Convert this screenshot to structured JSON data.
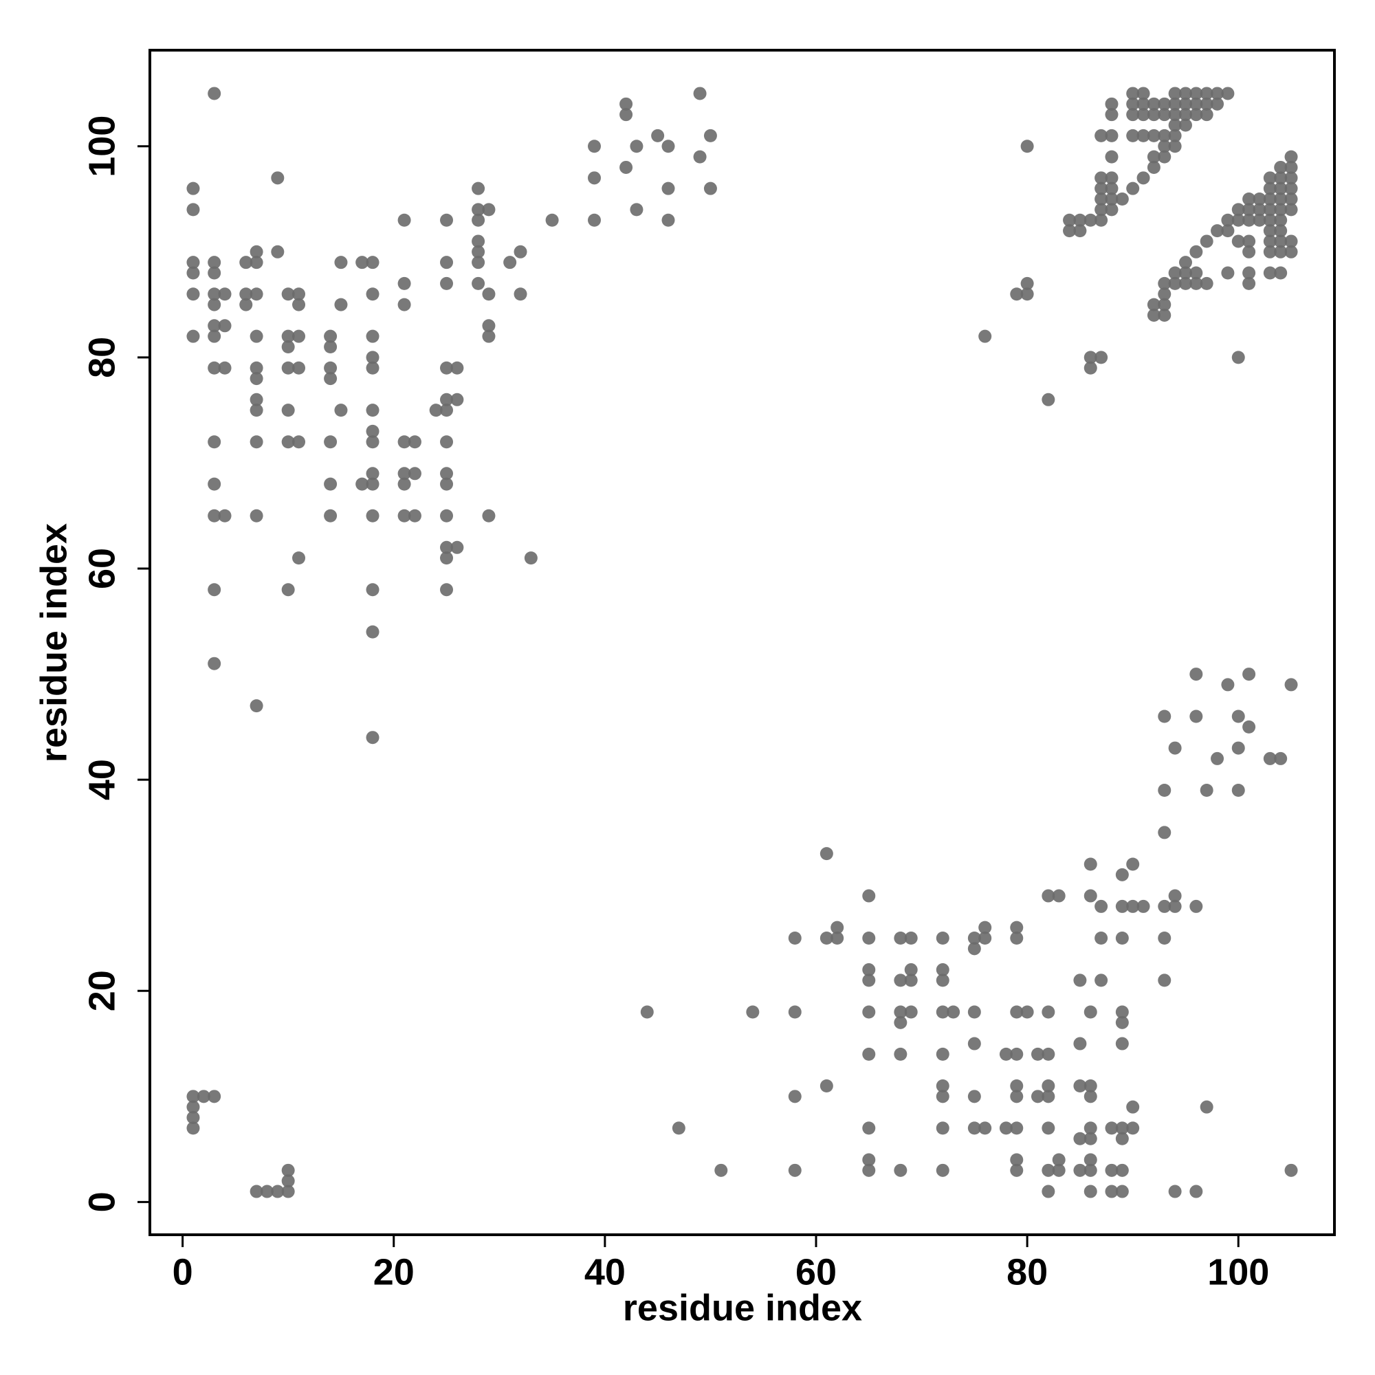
{
  "chart_data": {
    "type": "scatter",
    "x_label": "residue index",
    "y_label": "residue index",
    "xlim": [
      -3.1,
      109.1
    ],
    "ylim": [
      -3.1,
      109.1
    ],
    "xticks": [
      0,
      20,
      40,
      60,
      80,
      100
    ],
    "yticks": [
      0,
      20,
      40,
      60,
      80,
      100
    ],
    "series": [
      {
        "color": "#6a6a6a",
        "x": [
          1,
          1,
          3,
          9,
          1,
          1,
          1,
          1,
          3,
          3,
          3,
          3,
          3,
          3,
          3,
          3,
          3,
          3,
          3,
          3,
          4,
          4,
          4,
          4,
          6,
          6,
          6,
          7,
          7,
          7,
          7,
          7,
          7,
          7,
          7,
          7,
          7,
          7,
          9,
          10,
          10,
          10,
          10,
          10,
          10,
          10,
          11,
          11,
          11,
          11,
          11,
          11,
          14,
          14,
          14,
          14,
          14,
          14,
          14,
          15,
          15,
          15,
          17,
          17,
          18,
          18,
          18,
          18,
          18,
          18,
          18,
          18,
          18,
          18,
          18,
          18,
          18,
          18,
          21,
          21,
          21,
          21,
          21,
          21,
          21,
          22,
          22,
          22,
          24,
          25,
          25,
          25,
          25,
          25,
          25,
          25,
          25,
          25,
          25,
          25,
          25,
          25,
          26,
          26,
          26,
          28,
          28,
          28,
          28,
          28,
          28,
          28,
          29,
          29,
          29,
          29,
          29,
          31,
          32,
          32,
          33,
          35,
          39,
          39,
          39,
          42,
          42,
          42,
          43,
          43,
          45,
          46,
          46,
          46,
          49,
          49,
          50,
          50,
          1,
          1,
          1,
          1,
          2,
          3,
          7,
          8,
          9,
          10,
          10,
          10,
          76,
          79,
          80,
          80,
          80,
          82,
          84,
          84,
          85,
          85,
          86,
          86,
          86,
          87,
          87,
          87,
          87,
          87,
          87,
          87,
          88,
          88,
          88,
          88,
          88,
          88,
          88,
          88,
          89,
          90,
          90,
          90,
          90,
          90,
          91,
          91,
          91,
          91,
          91,
          92,
          92,
          92,
          92,
          92,
          93,
          93,
          93,
          93,
          93,
          94,
          94,
          94,
          94,
          94,
          94,
          95,
          95,
          95,
          95,
          96,
          96,
          96,
          97,
          97,
          97,
          98,
          98,
          99,
          92,
          92,
          93,
          93,
          93,
          93,
          94,
          94,
          95,
          95,
          95,
          96,
          96,
          96,
          97,
          97,
          98,
          99,
          99,
          99,
          100,
          100,
          100,
          100,
          101,
          101,
          101,
          101,
          101,
          101,
          101,
          102,
          102,
          102,
          103,
          103,
          103,
          103,
          103,
          103,
          103,
          103,
          103,
          104,
          104,
          104,
          104,
          104,
          104,
          104,
          104,
          104,
          104,
          105,
          105,
          105,
          105,
          105,
          105,
          105,
          105,
          47,
          51,
          44,
          54,
          58,
          58,
          58,
          58,
          61,
          61,
          61,
          62,
          62,
          65,
          65,
          65,
          65,
          65,
          65,
          65,
          65,
          65,
          68,
          68,
          68,
          68,
          68,
          68,
          69,
          69,
          69,
          69,
          72,
          72,
          72,
          72,
          72,
          72,
          72,
          72,
          72,
          73,
          75,
          75,
          75,
          75,
          75,
          75,
          76,
          76,
          76,
          78,
          78,
          79,
          79,
          79,
          79,
          79,
          79,
          79,
          79,
          79,
          80,
          81,
          81,
          82,
          82,
          82,
          82,
          82,
          82,
          82,
          82,
          83,
          83,
          83,
          85,
          85,
          85,
          85,
          85,
          86,
          86,
          86,
          86,
          86,
          86,
          86,
          86,
          86,
          86,
          87,
          87,
          87,
          88,
          88,
          88,
          89,
          89,
          89,
          89,
          89,
          89,
          89,
          89,
          89,
          89,
          90,
          90,
          90,
          90,
          91,
          93,
          93,
          93,
          93,
          93,
          93,
          94,
          94,
          94,
          94,
          96,
          96,
          96,
          96,
          97,
          97,
          98,
          99,
          100,
          100,
          100,
          101,
          101,
          103,
          104,
          105,
          105
        ],
        "values": [
          96,
          94,
          105,
          97,
          89,
          88,
          86,
          82,
          89,
          88,
          86,
          85,
          83,
          82,
          79,
          72,
          68,
          65,
          58,
          51,
          86,
          83,
          79,
          65,
          89,
          86,
          85,
          90,
          89,
          86,
          82,
          79,
          78,
          76,
          75,
          72,
          65,
          47,
          90,
          86,
          82,
          81,
          79,
          75,
          72,
          58,
          86,
          85,
          82,
          79,
          72,
          61,
          82,
          81,
          79,
          78,
          72,
          68,
          65,
          89,
          85,
          75,
          89,
          68,
          89,
          86,
          82,
          80,
          79,
          75,
          73,
          72,
          69,
          68,
          65,
          58,
          54,
          44,
          93,
          87,
          85,
          72,
          69,
          68,
          65,
          72,
          69,
          65,
          75,
          93,
          89,
          87,
          79,
          76,
          75,
          72,
          69,
          68,
          65,
          62,
          61,
          58,
          79,
          76,
          62,
          96,
          94,
          93,
          91,
          90,
          89,
          87,
          94,
          86,
          83,
          82,
          65,
          89,
          90,
          86,
          61,
          93,
          100,
          97,
          93,
          104,
          103,
          98,
          100,
          94,
          101,
          100,
          96,
          93,
          105,
          99,
          101,
          96,
          10,
          9,
          8,
          7,
          10,
          10,
          1,
          1,
          1,
          1,
          2,
          3,
          82,
          86,
          87,
          86,
          100,
          76,
          93,
          92,
          93,
          92,
          93,
          80,
          79,
          101,
          95,
          94,
          93,
          96,
          97,
          80,
          104,
          103,
          101,
          99,
          97,
          96,
          95,
          94,
          95,
          105,
          104,
          103,
          101,
          96,
          105,
          104,
          103,
          101,
          97,
          104,
          103,
          101,
          99,
          98,
          104,
          103,
          101,
          100,
          99,
          105,
          104,
          103,
          102,
          101,
          100,
          105,
          104,
          103,
          102,
          105,
          104,
          103,
          105,
          104,
          103,
          105,
          104,
          105,
          85,
          84,
          87,
          86,
          85,
          84,
          88,
          87,
          89,
          88,
          87,
          90,
          88,
          87,
          91,
          87,
          92,
          93,
          92,
          88,
          94,
          93,
          91,
          80,
          95,
          94,
          93,
          91,
          90,
          88,
          87,
          95,
          94,
          93,
          97,
          96,
          95,
          94,
          93,
          92,
          91,
          90,
          88,
          98,
          97,
          96,
          95,
          94,
          93,
          92,
          91,
          90,
          88,
          99,
          98,
          97,
          96,
          95,
          94,
          91,
          90,
          7,
          3,
          18,
          18,
          25,
          18,
          10,
          3,
          33,
          25,
          11,
          26,
          25,
          29,
          25,
          22,
          21,
          18,
          14,
          7,
          4,
          3,
          25,
          21,
          18,
          17,
          14,
          3,
          25,
          22,
          21,
          18,
          25,
          22,
          21,
          18,
          14,
          11,
          10,
          7,
          3,
          18,
          25,
          24,
          18,
          15,
          10,
          7,
          26,
          25,
          7,
          14,
          7,
          26,
          25,
          18,
          14,
          11,
          10,
          7,
          4,
          3,
          18,
          14,
          10,
          29,
          18,
          14,
          11,
          10,
          7,
          3,
          1,
          29,
          4,
          3,
          21,
          15,
          11,
          6,
          3,
          32,
          29,
          18,
          11,
          10,
          7,
          6,
          4,
          3,
          1,
          28,
          25,
          21,
          7,
          3,
          1,
          31,
          28,
          25,
          18,
          17,
          15,
          7,
          6,
          3,
          1,
          32,
          28,
          9,
          7,
          28,
          46,
          39,
          35,
          28,
          25,
          21,
          43,
          29,
          28,
          1,
          50,
          46,
          28,
          1,
          39,
          9,
          42,
          49,
          46,
          43,
          39,
          50,
          45,
          42,
          42,
          49,
          3
        ]
      }
    ]
  }
}
